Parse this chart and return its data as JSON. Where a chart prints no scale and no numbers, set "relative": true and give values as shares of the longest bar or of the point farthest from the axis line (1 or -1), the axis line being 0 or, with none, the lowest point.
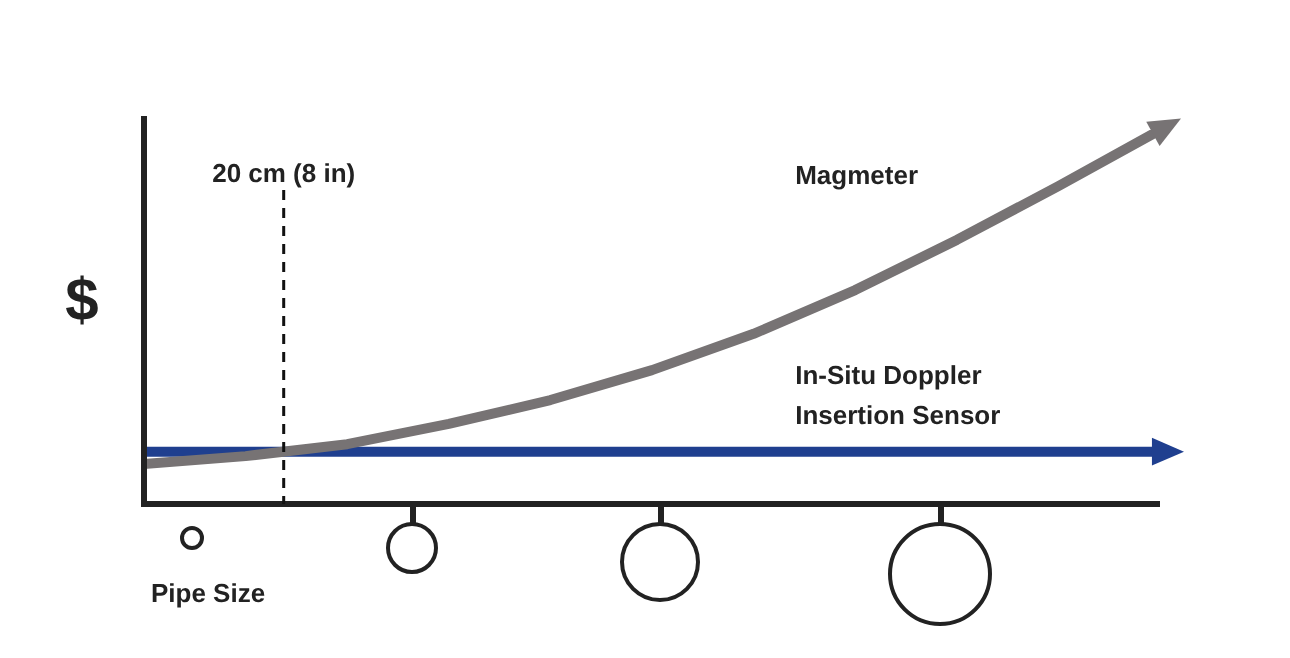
{
  "chart_data": {
    "type": "line",
    "relative": true,
    "ylabel": "$",
    "xlabel": "Pipe Size",
    "categories": [
      null,
      null,
      null,
      null,
      null,
      null,
      null,
      null,
      null,
      null,
      null
    ],
    "legend": false,
    "marker": "none",
    "line_style": "solid",
    "series": [
      {
        "name": "Magmeter",
        "color": "#777374",
        "values": [
          0.107,
          0.128,
          0.16,
          0.214,
          0.278,
          0.358,
          0.455,
          0.572,
          0.706,
          0.85,
          1
        ]
      },
      {
        "name": "In-Situ Doppler Insertion Sensor",
        "color": "#1f3f8f",
        "values": [
          0.14,
          0.14,
          0.14,
          0.14,
          0.14,
          0.14,
          0.14,
          0.14,
          0.14,
          0.14,
          0.14
        ]
      }
    ],
    "ref_lines": [
      {
        "axis": "x",
        "label": "20 cm (8 in)",
        "color": "#111111",
        "line_style": "dashed"
      }
    ]
  }
}
